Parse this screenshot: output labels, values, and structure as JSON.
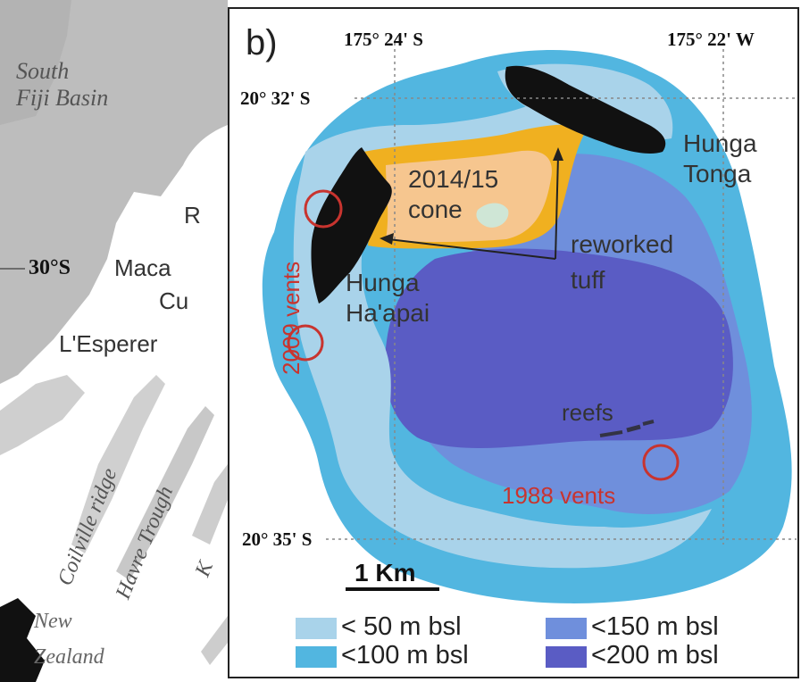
{
  "overview_map": {
    "labels": {
      "south_fiji_basin": "South\nFiji Basin",
      "lat_30s": "30°S",
      "macquarie_partial": "Maca",
      "cu_partial": "Cu",
      "r_partial": "R",
      "lesperance_partial": "L'Esperer",
      "colville_ridge": "Coilville ridge",
      "havre_trough": "Havre Trough",
      "new_zealand": "New\nZealand",
      "k_partial": "K"
    }
  },
  "detail_map": {
    "panel_label": "b)",
    "coords": {
      "lon_1": "175° 24' S",
      "lon_2": "175° 22' W",
      "lat_1": "20° 32' S",
      "lat_2": "20° 35' S"
    },
    "features": {
      "hunga_tonga": "Hunga\nTonga",
      "hunga_haapai": "Hunga\nHa'apai",
      "cone": "2014/15\ncone",
      "reworked_tuff": "reworked\ntuff",
      "reefs": "reefs",
      "vents_2009": "2009 vents",
      "vents_1988": "1988 vents"
    },
    "scale_bar": "1 Km",
    "legend": [
      {
        "label": "< 50 m bsl",
        "color": "#a9d3ea"
      },
      {
        "label": "<100 m bsl",
        "color": "#52b6e0"
      },
      {
        "label": "<150 m bsl",
        "color": "#6f8fdc"
      },
      {
        "label": "<200 m bsl",
        "color": "#5a5cc4"
      }
    ],
    "colors": {
      "land": "#111111",
      "cone_fill": "#f6c68f",
      "tuff": "#f0b020",
      "vents": "#c8342f"
    }
  }
}
